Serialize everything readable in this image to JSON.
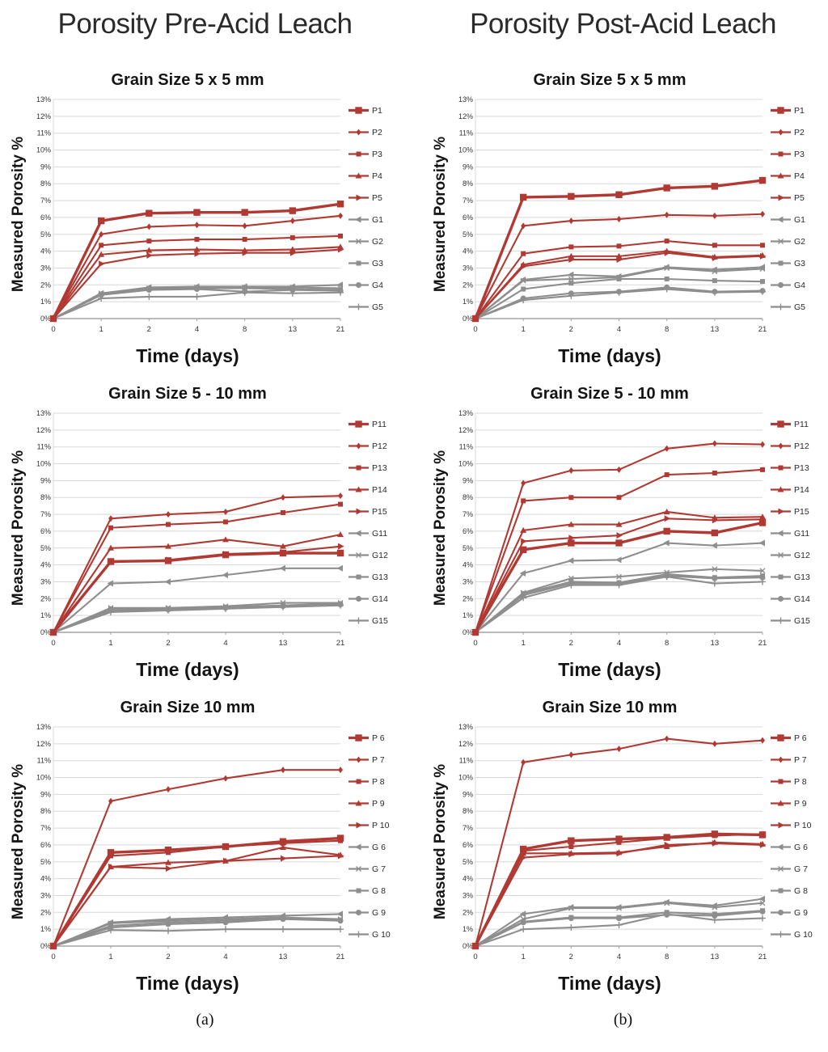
{
  "page": {
    "left_header": "Porosity Pre-Acid Leach",
    "right_header": "Porosity Post-Acid Leach",
    "caption_a": "(a)",
    "caption_b": "(b)"
  },
  "colors": {
    "p_series": "#B03A33",
    "g_series": "#8E8E8E",
    "grid": "#D8D8D8",
    "axis": "#A3A3A3",
    "tick_text": "#333333"
  },
  "chart_data": [
    {
      "type": "line",
      "column": "pre-acid",
      "title": "Grain Size 5 x 5 mm",
      "xlabel": "Time (days)",
      "ylabel": "Measured Porosity %",
      "x_ticklabels": [
        "0",
        "1",
        "2",
        "4",
        "8",
        "13",
        "21"
      ],
      "ylim": [
        0,
        13
      ],
      "ytick_suffix": "%",
      "grid": true,
      "legend_position": "right",
      "series": [
        {
          "name": "P1",
          "group": "p",
          "thick": true,
          "values": [
            0,
            5.8,
            6.25,
            6.3,
            6.3,
            6.4,
            6.8
          ]
        },
        {
          "name": "P2",
          "group": "p",
          "thick": false,
          "values": [
            0,
            5.0,
            5.45,
            5.55,
            5.5,
            5.8,
            6.1
          ]
        },
        {
          "name": "P3",
          "group": "p",
          "thick": false,
          "values": [
            0,
            4.35,
            4.6,
            4.7,
            4.7,
            4.8,
            4.9
          ]
        },
        {
          "name": "P4",
          "group": "p",
          "thick": false,
          "values": [
            0,
            3.8,
            4.05,
            4.1,
            4.05,
            4.1,
            4.25
          ]
        },
        {
          "name": "P5",
          "group": "p",
          "thick": false,
          "values": [
            0,
            3.25,
            3.75,
            3.85,
            3.9,
            3.9,
            4.1
          ]
        },
        {
          "name": "G1",
          "group": "g",
          "thick": false,
          "values": [
            0,
            1.5,
            1.85,
            1.9,
            1.9,
            1.9,
            2.0
          ]
        },
        {
          "name": "G2",
          "group": "g",
          "thick": false,
          "values": [
            0,
            1.5,
            1.8,
            1.85,
            1.85,
            1.85,
            1.8
          ]
        },
        {
          "name": "G3",
          "group": "g",
          "thick": false,
          "values": [
            0,
            1.45,
            1.75,
            1.8,
            1.8,
            1.75,
            1.7
          ]
        },
        {
          "name": "G4",
          "group": "g",
          "thick": false,
          "values": [
            0,
            1.4,
            1.7,
            1.75,
            1.6,
            1.7,
            1.65
          ]
        },
        {
          "name": "G5",
          "group": "g",
          "thick": false,
          "values": [
            0,
            1.2,
            1.3,
            1.3,
            1.55,
            1.5,
            1.55
          ]
        }
      ]
    },
    {
      "type": "line",
      "column": "pre-acid",
      "title": "Grain Size 5 - 10 mm",
      "xlabel": "Time (days)",
      "ylabel": "Measured Porosity  %",
      "x_ticklabels": [
        "0",
        "1",
        "2",
        "4",
        "13",
        "21"
      ],
      "ylim": [
        0,
        13
      ],
      "ytick_suffix": "%",
      "grid": true,
      "legend_position": "right",
      "series": [
        {
          "name": "P11",
          "group": "p",
          "thick": true,
          "values": [
            0,
            4.2,
            4.25,
            4.6,
            4.7,
            4.7
          ]
        },
        {
          "name": "P12",
          "group": "p",
          "thick": false,
          "values": [
            0,
            6.75,
            7.0,
            7.15,
            8.0,
            8.1
          ]
        },
        {
          "name": "P13",
          "group": "p",
          "thick": false,
          "values": [
            0,
            6.2,
            6.4,
            6.55,
            7.1,
            7.6
          ]
        },
        {
          "name": "P14",
          "group": "p",
          "thick": false,
          "values": [
            0,
            5.0,
            5.1,
            5.5,
            5.1,
            5.8
          ]
        },
        {
          "name": "P15",
          "group": "p",
          "thick": false,
          "values": [
            0,
            4.15,
            4.3,
            4.65,
            4.75,
            5.1
          ]
        },
        {
          "name": "G11",
          "group": "g",
          "thick": false,
          "values": [
            0,
            2.9,
            3.0,
            3.4,
            3.8,
            3.8
          ]
        },
        {
          "name": "G12",
          "group": "g",
          "thick": false,
          "values": [
            0,
            1.45,
            1.45,
            1.55,
            1.75,
            1.75
          ]
        },
        {
          "name": "G13",
          "group": "g",
          "thick": false,
          "values": [
            0,
            1.4,
            1.4,
            1.5,
            1.6,
            1.7
          ]
        },
        {
          "name": "G14",
          "group": "g",
          "thick": false,
          "values": [
            0,
            1.3,
            1.35,
            1.45,
            1.55,
            1.65
          ]
        },
        {
          "name": "G15",
          "group": "g",
          "thick": false,
          "values": [
            0,
            1.2,
            1.3,
            1.4,
            1.5,
            1.6
          ]
        }
      ]
    },
    {
      "type": "line",
      "column": "pre-acid",
      "title": "Grain Size 10 mm",
      "xlabel": "Time (days)",
      "ylabel": "Measured Porosity %",
      "x_ticklabels": [
        "0",
        "1",
        "2",
        "4",
        "13",
        "21"
      ],
      "ylim": [
        0,
        13
      ],
      "ytick_suffix": "%",
      "grid": true,
      "legend_position": "right",
      "series": [
        {
          "name": "P 6",
          "group": "p",
          "thick": true,
          "values": [
            0,
            5.55,
            5.7,
            5.9,
            6.2,
            6.4
          ]
        },
        {
          "name": "P 7",
          "group": "p",
          "thick": false,
          "values": [
            0,
            8.6,
            9.3,
            9.95,
            10.45,
            10.45
          ]
        },
        {
          "name": "P 8",
          "group": "p",
          "thick": false,
          "values": [
            0,
            5.35,
            5.55,
            5.9,
            6.1,
            6.25
          ]
        },
        {
          "name": "P 9",
          "group": "p",
          "thick": false,
          "values": [
            0,
            4.7,
            4.95,
            5.05,
            5.85,
            5.4
          ]
        },
        {
          "name": "P 10",
          "group": "p",
          "thick": false,
          "values": [
            0,
            4.7,
            4.6,
            5.05,
            5.2,
            5.35
          ]
        },
        {
          "name": "G 6",
          "group": "g",
          "thick": false,
          "values": [
            0,
            1.4,
            1.6,
            1.7,
            1.8,
            1.9
          ]
        },
        {
          "name": "G 7",
          "group": "g",
          "thick": false,
          "values": [
            0,
            1.35,
            1.5,
            1.6,
            1.7,
            1.6
          ]
        },
        {
          "name": "G 8",
          "group": "g",
          "thick": false,
          "values": [
            0,
            1.2,
            1.4,
            1.5,
            1.65,
            1.55
          ]
        },
        {
          "name": "G 9",
          "group": "g",
          "thick": false,
          "values": [
            0,
            1.1,
            1.3,
            1.4,
            1.6,
            1.5
          ]
        },
        {
          "name": "G 10",
          "group": "g",
          "thick": false,
          "values": [
            0,
            0.95,
            0.9,
            1.0,
            1.0,
            1.0
          ]
        }
      ]
    },
    {
      "type": "line",
      "column": "post-acid",
      "title": "Grain Size 5 x 5 mm",
      "xlabel": "Time (days)",
      "ylabel": "Measured Porosity %",
      "x_ticklabels": [
        "0",
        "1",
        "2",
        "4",
        "8",
        "13",
        "21"
      ],
      "ylim": [
        0,
        13
      ],
      "ytick_suffix": "%",
      "grid": true,
      "legend_position": "right",
      "series": [
        {
          "name": "P1",
          "group": "p",
          "thick": true,
          "values": [
            0,
            7.2,
            7.25,
            7.35,
            7.75,
            7.85,
            8.2
          ]
        },
        {
          "name": "P2",
          "group": "p",
          "thick": false,
          "values": [
            0,
            5.5,
            5.8,
            5.9,
            6.15,
            6.1,
            6.2
          ]
        },
        {
          "name": "P3",
          "group": "p",
          "thick": false,
          "values": [
            0,
            3.85,
            4.25,
            4.3,
            4.6,
            4.35,
            4.35
          ]
        },
        {
          "name": "P4",
          "group": "p",
          "thick": false,
          "values": [
            0,
            3.2,
            3.7,
            3.7,
            4.0,
            3.65,
            3.75
          ]
        },
        {
          "name": "P5",
          "group": "p",
          "thick": false,
          "values": [
            0,
            3.1,
            3.5,
            3.5,
            3.9,
            3.6,
            3.7
          ]
        },
        {
          "name": "G1",
          "group": "g",
          "thick": false,
          "values": [
            0,
            2.3,
            2.6,
            2.5,
            3.05,
            2.9,
            3.05
          ]
        },
        {
          "name": "G2",
          "group": "g",
          "thick": false,
          "values": [
            0,
            2.25,
            2.35,
            2.45,
            3.0,
            2.8,
            2.95
          ]
        },
        {
          "name": "G3",
          "group": "g",
          "thick": false,
          "values": [
            0,
            1.75,
            2.1,
            2.35,
            2.35,
            2.25,
            2.2
          ]
        },
        {
          "name": "G4",
          "group": "g",
          "thick": false,
          "values": [
            0,
            1.2,
            1.5,
            1.6,
            1.85,
            1.6,
            1.65
          ]
        },
        {
          "name": "G5",
          "group": "g",
          "thick": false,
          "values": [
            0,
            1.1,
            1.35,
            1.55,
            1.75,
            1.55,
            1.6
          ]
        }
      ]
    },
    {
      "type": "line",
      "column": "post-acid",
      "title": "Grain Size 5 - 10 mm",
      "xlabel": "Time (days)",
      "ylabel": "Measured Porosity  %",
      "x_ticklabels": [
        "0",
        "1",
        "2",
        "4",
        "8",
        "13",
        "21"
      ],
      "ylim": [
        0,
        13
      ],
      "ytick_suffix": "%",
      "grid": true,
      "legend_position": "right",
      "series": [
        {
          "name": "P11",
          "group": "p",
          "thick": true,
          "values": [
            0,
            4.9,
            5.3,
            5.3,
            6.0,
            5.9,
            6.5
          ]
        },
        {
          "name": "P12",
          "group": "p",
          "thick": false,
          "values": [
            0,
            8.85,
            9.6,
            9.65,
            10.9,
            11.2,
            11.15
          ]
        },
        {
          "name": "P13",
          "group": "p",
          "thick": false,
          "values": [
            0,
            7.8,
            8.0,
            8.0,
            9.35,
            9.45,
            9.65
          ]
        },
        {
          "name": "P14",
          "group": "p",
          "thick": false,
          "values": [
            0,
            6.05,
            6.4,
            6.4,
            7.15,
            6.8,
            6.85
          ]
        },
        {
          "name": "P15",
          "group": "p",
          "thick": false,
          "values": [
            0,
            5.4,
            5.6,
            5.75,
            6.75,
            6.65,
            6.7
          ]
        },
        {
          "name": "G11",
          "group": "g",
          "thick": false,
          "values": [
            0,
            3.5,
            4.25,
            4.3,
            5.3,
            5.15,
            5.3
          ]
        },
        {
          "name": "G12",
          "group": "g",
          "thick": false,
          "values": [
            0,
            2.35,
            3.2,
            3.3,
            3.55,
            3.75,
            3.65
          ]
        },
        {
          "name": "G13",
          "group": "g",
          "thick": false,
          "values": [
            0,
            2.3,
            3.0,
            2.95,
            3.45,
            3.25,
            3.35
          ]
        },
        {
          "name": "G14",
          "group": "g",
          "thick": false,
          "values": [
            0,
            2.2,
            2.9,
            2.9,
            3.35,
            3.2,
            3.25
          ]
        },
        {
          "name": "G15",
          "group": "g",
          "thick": false,
          "values": [
            0,
            2.05,
            2.8,
            2.8,
            3.3,
            2.9,
            3.0
          ]
        }
      ]
    },
    {
      "type": "line",
      "column": "post-acid",
      "title": "Grain Size 10 mm",
      "xlabel": "Time (days)",
      "ylabel": "Measured Porosity %",
      "x_ticklabels": [
        "0",
        "1",
        "2",
        "4",
        "8",
        "13",
        "21"
      ],
      "ylim": [
        0,
        13
      ],
      "ytick_suffix": "%",
      "grid": true,
      "legend_position": "right",
      "series": [
        {
          "name": "P 6",
          "group": "p",
          "thick": true,
          "values": [
            0,
            5.75,
            6.25,
            6.35,
            6.45,
            6.65,
            6.6
          ]
        },
        {
          "name": "P 7",
          "group": "p",
          "thick": false,
          "values": [
            0,
            10.9,
            11.35,
            11.7,
            12.3,
            12.0,
            12.2
          ]
        },
        {
          "name": "P 8",
          "group": "p",
          "thick": false,
          "values": [
            0,
            5.65,
            5.9,
            6.15,
            6.4,
            6.55,
            6.65
          ]
        },
        {
          "name": "P 9",
          "group": "p",
          "thick": false,
          "values": [
            0,
            5.5,
            5.5,
            5.55,
            5.9,
            6.15,
            6.05
          ]
        },
        {
          "name": "P 10",
          "group": "p",
          "thick": false,
          "values": [
            0,
            5.25,
            5.45,
            5.5,
            6.0,
            6.1,
            6.0
          ]
        },
        {
          "name": "G 6",
          "group": "g",
          "thick": false,
          "values": [
            0,
            1.9,
            2.3,
            2.3,
            2.6,
            2.4,
            2.8
          ]
        },
        {
          "name": "G 7",
          "group": "g",
          "thick": false,
          "values": [
            0,
            1.6,
            2.25,
            2.25,
            2.55,
            2.3,
            2.55
          ]
        },
        {
          "name": "G 8",
          "group": "g",
          "thick": false,
          "values": [
            0,
            1.45,
            1.7,
            1.7,
            2.0,
            1.9,
            2.1
          ]
        },
        {
          "name": "G 9",
          "group": "g",
          "thick": false,
          "values": [
            0,
            1.4,
            1.65,
            1.65,
            1.85,
            1.8,
            2.05
          ]
        },
        {
          "name": "G 10",
          "group": "g",
          "thick": false,
          "values": [
            0,
            1.0,
            1.1,
            1.25,
            1.9,
            1.55,
            1.65
          ]
        }
      ]
    }
  ]
}
